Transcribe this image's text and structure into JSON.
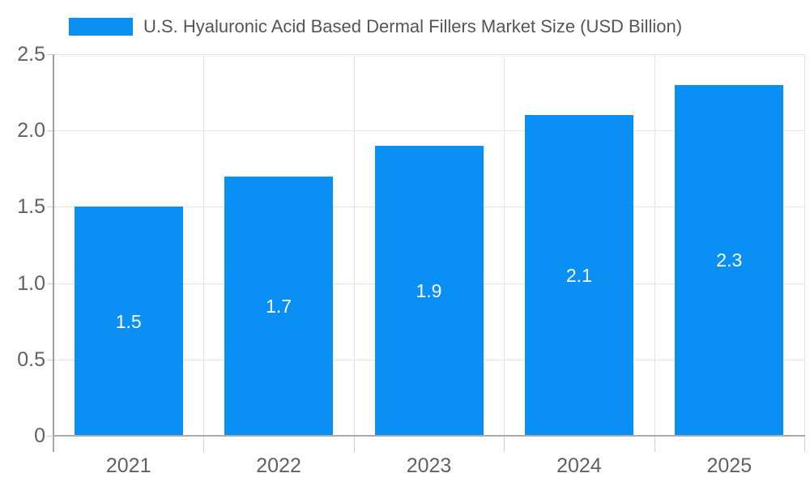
{
  "chart_data": {
    "type": "bar",
    "title": "U.S. Hyaluronic Acid Based Dermal Fillers Market Size (USD Billion)",
    "legend_position": "top",
    "categories": [
      "2021",
      "2022",
      "2023",
      "2024",
      "2025"
    ],
    "series": [
      {
        "name": "U.S. Hyaluronic Acid Based Dermal Fillers Market Size (USD Billion)",
        "values": [
          1.5,
          1.7,
          1.9,
          2.1,
          2.3
        ]
      }
    ],
    "bar_labels": [
      "1.5",
      "1.7",
      "1.9",
      "2.1",
      "2.3"
    ],
    "xlabel": "",
    "ylabel": "",
    "ylim": [
      0,
      2.5
    ],
    "ytick_interval": 0.5,
    "ytick_labels": [
      "0",
      "0.5",
      "1.0",
      "1.5",
      "2.0",
      "2.5"
    ],
    "grid": true,
    "colors": {
      "bar": "#0A90F5",
      "grid": "#e4e4e4",
      "axis_line": "#9e9e9e",
      "baseline": "#ababab",
      "tick_text": "#616161",
      "legend_text": "#555555",
      "bar_label_text": "#ffffff",
      "background": "#ffffff"
    }
  }
}
